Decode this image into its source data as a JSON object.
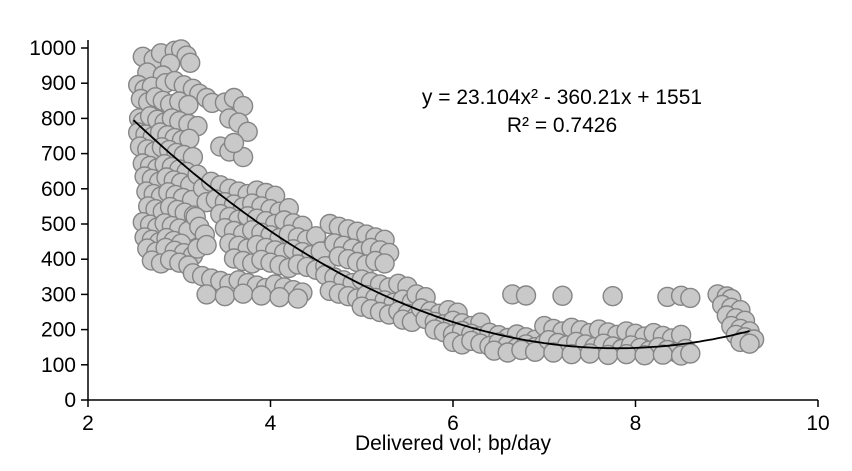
{
  "chart_data": {
    "type": "scatter",
    "title": "",
    "xlabel": "Delivered vol; bp/day",
    "ylabel": "",
    "xlim": [
      2,
      10
    ],
    "ylim": [
      0,
      1000
    ],
    "x_ticks": [
      2,
      4,
      6,
      8,
      10
    ],
    "y_ticks": [
      0,
      100,
      200,
      300,
      400,
      500,
      600,
      700,
      800,
      900,
      1000
    ],
    "grid": false,
    "legend": false,
    "marker": {
      "radius": 9.5,
      "fill": "#c9c9c9",
      "stroke": "#858585",
      "stroke_width": 1.4
    },
    "trendline": {
      "type": "polynomial",
      "degree": 2,
      "coefficients": [
        23.104,
        -360.21,
        1551
      ],
      "equation": "y = 23.104x² - 360.21x + 1551",
      "r_squared": 0.7426,
      "r_squared_label": "R² = 0.7426",
      "color": "#000000",
      "x_start": 2.5,
      "x_end": 9.25
    },
    "points": [
      [
        2.6,
        975
      ],
      [
        2.72,
        968
      ],
      [
        2.8,
        985
      ],
      [
        2.95,
        992
      ],
      [
        3.02,
        996
      ],
      [
        3.08,
        978
      ],
      [
        2.9,
        955
      ],
      [
        3.12,
        958
      ],
      [
        2.65,
        930
      ],
      [
        2.82,
        922
      ],
      [
        2.55,
        895
      ],
      [
        2.62,
        882
      ],
      [
        2.7,
        890
      ],
      [
        2.85,
        900
      ],
      [
        2.95,
        906
      ],
      [
        3.05,
        894
      ],
      [
        3.15,
        884
      ],
      [
        3.22,
        870
      ],
      [
        2.58,
        855
      ],
      [
        2.66,
        846
      ],
      [
        2.74,
        860
      ],
      [
        2.82,
        850
      ],
      [
        2.9,
        840
      ],
      [
        3.0,
        848
      ],
      [
        3.1,
        838
      ],
      [
        3.3,
        858
      ],
      [
        3.36,
        844
      ],
      [
        2.56,
        800
      ],
      [
        2.6,
        790
      ],
      [
        2.68,
        806
      ],
      [
        2.76,
        796
      ],
      [
        2.84,
        788
      ],
      [
        2.92,
        800
      ],
      [
        3.0,
        792
      ],
      [
        3.1,
        784
      ],
      [
        3.2,
        778
      ],
      [
        2.55,
        760
      ],
      [
        2.63,
        754
      ],
      [
        2.71,
        748
      ],
      [
        2.79,
        760
      ],
      [
        2.87,
        752
      ],
      [
        2.95,
        744
      ],
      [
        3.03,
        738
      ],
      [
        3.11,
        742
      ],
      [
        2.57,
        720
      ],
      [
        2.65,
        712
      ],
      [
        2.73,
        706
      ],
      [
        2.81,
        718
      ],
      [
        2.89,
        710
      ],
      [
        2.97,
        702
      ],
      [
        3.05,
        696
      ],
      [
        3.15,
        690
      ],
      [
        2.6,
        672
      ],
      [
        2.68,
        665
      ],
      [
        2.76,
        658
      ],
      [
        2.84,
        670
      ],
      [
        2.92,
        662
      ],
      [
        3.0,
        655
      ],
      [
        3.08,
        648
      ],
      [
        2.62,
        635
      ],
      [
        2.7,
        628
      ],
      [
        2.78,
        620
      ],
      [
        2.86,
        632
      ],
      [
        2.94,
        624
      ],
      [
        3.02,
        617
      ],
      [
        3.12,
        610
      ],
      [
        2.64,
        592
      ],
      [
        2.72,
        585
      ],
      [
        2.8,
        578
      ],
      [
        2.88,
        590
      ],
      [
        2.96,
        582
      ],
      [
        3.04,
        574
      ],
      [
        3.14,
        568
      ],
      [
        2.66,
        550
      ],
      [
        2.74,
        542
      ],
      [
        2.82,
        535
      ],
      [
        2.9,
        548
      ],
      [
        2.98,
        540
      ],
      [
        3.06,
        532
      ],
      [
        3.16,
        524
      ],
      [
        2.6,
        505
      ],
      [
        2.68,
        498
      ],
      [
        2.76,
        490
      ],
      [
        2.84,
        502
      ],
      [
        2.92,
        494
      ],
      [
        3.0,
        487
      ],
      [
        3.1,
        480
      ],
      [
        2.62,
        462
      ],
      [
        2.7,
        455
      ],
      [
        2.78,
        448
      ],
      [
        2.86,
        460
      ],
      [
        2.94,
        452
      ],
      [
        3.02,
        444
      ],
      [
        3.2,
        640
      ],
      [
        3.26,
        602
      ],
      [
        3.3,
        562
      ],
      [
        3.18,
        520
      ],
      [
        3.22,
        492
      ],
      [
        3.28,
        470
      ],
      [
        2.65,
        430
      ],
      [
        2.75,
        421
      ],
      [
        2.85,
        432
      ],
      [
        2.95,
        424
      ],
      [
        3.05,
        417
      ],
      [
        3.15,
        410
      ],
      [
        2.7,
        396
      ],
      [
        2.8,
        388
      ],
      [
        2.9,
        398
      ],
      [
        3.0,
        390
      ],
      [
        3.1,
        382
      ],
      [
        3.2,
        430
      ],
      [
        3.3,
        440
      ],
      [
        3.5,
        845
      ],
      [
        3.6,
        858
      ],
      [
        3.7,
        835
      ],
      [
        3.55,
        800
      ],
      [
        3.65,
        788
      ],
      [
        3.75,
        762
      ],
      [
        3.45,
        720
      ],
      [
        3.55,
        706
      ],
      [
        3.7,
        690
      ],
      [
        3.6,
        730
      ],
      [
        3.35,
        620
      ],
      [
        3.45,
        610
      ],
      [
        3.55,
        600
      ],
      [
        3.65,
        592
      ],
      [
        3.75,
        585
      ],
      [
        3.85,
        595
      ],
      [
        3.95,
        588
      ],
      [
        4.05,
        580
      ],
      [
        3.4,
        570
      ],
      [
        3.5,
        562
      ],
      [
        3.6,
        555
      ],
      [
        3.7,
        548
      ],
      [
        3.8,
        558
      ],
      [
        3.9,
        550
      ],
      [
        4.0,
        542
      ],
      [
        4.1,
        535
      ],
      [
        4.2,
        545
      ],
      [
        3.45,
        528
      ],
      [
        3.55,
        520
      ],
      [
        3.65,
        512
      ],
      [
        3.75,
        522
      ],
      [
        3.85,
        515
      ],
      [
        3.95,
        508
      ],
      [
        4.05,
        500
      ],
      [
        4.15,
        510
      ],
      [
        4.25,
        502
      ],
      [
        4.35,
        495
      ],
      [
        3.5,
        488
      ],
      [
        3.6,
        480
      ],
      [
        3.7,
        472
      ],
      [
        3.8,
        482
      ],
      [
        3.9,
        475
      ],
      [
        4.0,
        468
      ],
      [
        4.1,
        460
      ],
      [
        4.2,
        470
      ],
      [
        4.3,
        462
      ],
      [
        4.4,
        455
      ],
      [
        4.5,
        465
      ],
      [
        3.55,
        445
      ],
      [
        3.65,
        438
      ],
      [
        3.75,
        430
      ],
      [
        3.85,
        440
      ],
      [
        3.95,
        432
      ],
      [
        4.05,
        425
      ],
      [
        4.15,
        418
      ],
      [
        4.25,
        428
      ],
      [
        4.35,
        420
      ],
      [
        4.45,
        412
      ],
      [
        4.55,
        422
      ],
      [
        3.6,
        402
      ],
      [
        3.7,
        395
      ],
      [
        3.8,
        388
      ],
      [
        3.9,
        398
      ],
      [
        4.0,
        390
      ],
      [
        4.1,
        383
      ],
      [
        4.2,
        375
      ],
      [
        4.3,
        385
      ],
      [
        4.4,
        378
      ],
      [
        4.5,
        370
      ],
      [
        4.6,
        380
      ],
      [
        3.15,
        360
      ],
      [
        3.25,
        352
      ],
      [
        3.35,
        345
      ],
      [
        3.45,
        338
      ],
      [
        3.55,
        330
      ],
      [
        3.65,
        340
      ],
      [
        3.75,
        332
      ],
      [
        3.85,
        325
      ],
      [
        3.95,
        318
      ],
      [
        4.05,
        328
      ],
      [
        4.15,
        320
      ],
      [
        4.25,
        312
      ],
      [
        4.35,
        305
      ],
      [
        3.3,
        300
      ],
      [
        3.5,
        295
      ],
      [
        3.7,
        302
      ],
      [
        3.9,
        297
      ],
      [
        4.1,
        292
      ],
      [
        4.3,
        288
      ],
      [
        4.65,
        500
      ],
      [
        4.75,
        492
      ],
      [
        4.85,
        485
      ],
      [
        4.95,
        478
      ],
      [
        5.05,
        470
      ],
      [
        5.15,
        462
      ],
      [
        5.25,
        455
      ],
      [
        4.7,
        445
      ],
      [
        4.8,
        438
      ],
      [
        4.9,
        430
      ],
      [
        5.0,
        422
      ],
      [
        5.1,
        432
      ],
      [
        5.2,
        425
      ],
      [
        5.3,
        418
      ],
      [
        4.75,
        408
      ],
      [
        4.85,
        400
      ],
      [
        4.95,
        392
      ],
      [
        5.05,
        385
      ],
      [
        5.15,
        395
      ],
      [
        5.25,
        388
      ],
      [
        4.6,
        355
      ],
      [
        4.7,
        348
      ],
      [
        4.8,
        340
      ],
      [
        4.9,
        332
      ],
      [
        5.0,
        342
      ],
      [
        5.1,
        335
      ],
      [
        5.2,
        328
      ],
      [
        5.3,
        320
      ],
      [
        5.4,
        330
      ],
      [
        5.5,
        322
      ],
      [
        4.65,
        310
      ],
      [
        4.75,
        302
      ],
      [
        4.85,
        295
      ],
      [
        4.95,
        288
      ],
      [
        5.05,
        298
      ],
      [
        5.15,
        290
      ],
      [
        5.25,
        283
      ],
      [
        5.35,
        276
      ],
      [
        5.45,
        285
      ],
      [
        5.55,
        278
      ],
      [
        5.0,
        265
      ],
      [
        5.1,
        258
      ],
      [
        5.2,
        250
      ],
      [
        5.3,
        243
      ],
      [
        5.4,
        252
      ],
      [
        5.5,
        245
      ],
      [
        5.6,
        238
      ],
      [
        5.45,
        228
      ],
      [
        5.55,
        222
      ],
      [
        5.6,
        300
      ],
      [
        5.7,
        292
      ],
      [
        5.65,
        260
      ],
      [
        5.75,
        252
      ],
      [
        5.85,
        245
      ],
      [
        5.95,
        255
      ],
      [
        6.05,
        248
      ],
      [
        5.7,
        230
      ],
      [
        5.8,
        222
      ],
      [
        5.9,
        215
      ],
      [
        6.0,
        225
      ],
      [
        6.1,
        218
      ],
      [
        6.2,
        210
      ],
      [
        6.3,
        220
      ],
      [
        5.8,
        200
      ],
      [
        5.9,
        193
      ],
      [
        6.0,
        186
      ],
      [
        6.1,
        196
      ],
      [
        6.2,
        188
      ],
      [
        6.3,
        181
      ],
      [
        6.4,
        191
      ],
      [
        6.5,
        184
      ],
      [
        6.6,
        176
      ],
      [
        6.7,
        186
      ],
      [
        6.8,
        178
      ],
      [
        6.9,
        171
      ],
      [
        6.0,
        165
      ],
      [
        6.1,
        158
      ],
      [
        6.2,
        168
      ],
      [
        6.3,
        160
      ],
      [
        6.4,
        153
      ],
      [
        6.5,
        163
      ],
      [
        6.6,
        156
      ],
      [
        6.7,
        148
      ],
      [
        6.8,
        158
      ],
      [
        6.9,
        150
      ],
      [
        7.0,
        160
      ],
      [
        6.45,
        140
      ],
      [
        6.6,
        135
      ],
      [
        6.75,
        142
      ],
      [
        6.9,
        137
      ],
      [
        6.65,
        300
      ],
      [
        6.8,
        297
      ],
      [
        7.2,
        296
      ],
      [
        7.75,
        295
      ],
      [
        8.35,
        293
      ],
      [
        8.5,
        296
      ],
      [
        8.6,
        290
      ],
      [
        7.0,
        210
      ],
      [
        7.1,
        202
      ],
      [
        7.2,
        195
      ],
      [
        7.3,
        205
      ],
      [
        7.4,
        198
      ],
      [
        7.5,
        190
      ],
      [
        7.6,
        200
      ],
      [
        7.7,
        192
      ],
      [
        7.8,
        185
      ],
      [
        7.9,
        195
      ],
      [
        8.0,
        188
      ],
      [
        8.1,
        180
      ],
      [
        8.2,
        190
      ],
      [
        8.3,
        182
      ],
      [
        8.4,
        175
      ],
      [
        8.5,
        185
      ],
      [
        7.05,
        170
      ],
      [
        7.15,
        162
      ],
      [
        7.25,
        155
      ],
      [
        7.35,
        165
      ],
      [
        7.45,
        158
      ],
      [
        7.55,
        150
      ],
      [
        7.65,
        160
      ],
      [
        7.75,
        152
      ],
      [
        7.85,
        145
      ],
      [
        7.95,
        155
      ],
      [
        8.05,
        148
      ],
      [
        8.15,
        140
      ],
      [
        8.25,
        150
      ],
      [
        8.35,
        142
      ],
      [
        8.45,
        135
      ],
      [
        8.55,
        145
      ],
      [
        7.1,
        135
      ],
      [
        7.3,
        130
      ],
      [
        7.5,
        132
      ],
      [
        7.7,
        128
      ],
      [
        7.9,
        130
      ],
      [
        8.1,
        127
      ],
      [
        8.3,
        129
      ],
      [
        8.5,
        126
      ],
      [
        8.6,
        132
      ],
      [
        8.9,
        300
      ],
      [
        9.0,
        294
      ],
      [
        9.05,
        287
      ],
      [
        8.95,
        270
      ],
      [
        9.05,
        262
      ],
      [
        9.15,
        255
      ],
      [
        9.0,
        240
      ],
      [
        9.1,
        232
      ],
      [
        9.2,
        225
      ],
      [
        9.05,
        210
      ],
      [
        9.15,
        202
      ],
      [
        9.25,
        195
      ],
      [
        9.1,
        185
      ],
      [
        9.2,
        178
      ],
      [
        9.3,
        172
      ],
      [
        9.15,
        165
      ],
      [
        9.25,
        160
      ]
    ]
  }
}
